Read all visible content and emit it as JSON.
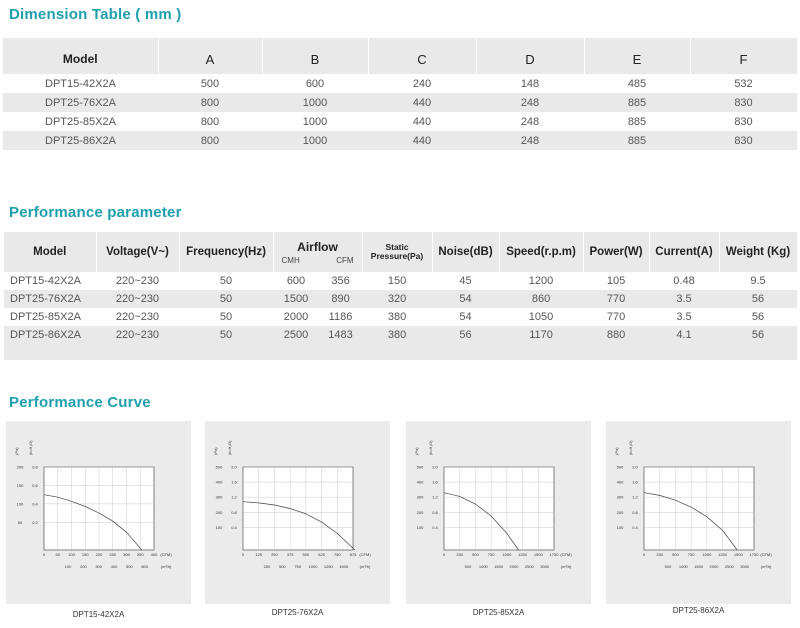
{
  "dimension": {
    "title": "Dimension Table ( mm )",
    "headers": [
      "Model",
      "A",
      "B",
      "C",
      "D",
      "E",
      "F"
    ],
    "rows": [
      [
        "DPT15-42X2A",
        "500",
        "600",
        "240",
        "148",
        "485",
        "532"
      ],
      [
        "DPT25-76X2A",
        "800",
        "1000",
        "440",
        "248",
        "885",
        "830"
      ],
      [
        "DPT25-85X2A",
        "800",
        "1000",
        "440",
        "248",
        "885",
        "830"
      ],
      [
        "DPT25-86X2A",
        "800",
        "1000",
        "440",
        "248",
        "885",
        "830"
      ]
    ]
  },
  "performance": {
    "title": "Performance parameter",
    "headers": {
      "model": "Model",
      "voltage": "Voltage(V~)",
      "frequency": "Frequency(Hz)",
      "airflow": "Airflow",
      "cmh": "CMH",
      "cfm": "CFM",
      "static_top": "Static",
      "static_bottom": "Pressure(Pa)",
      "noise": "Noise(dB)",
      "speed": "Speed(r.p.m)",
      "power": "Power(W)",
      "current": "Current(A)",
      "weight": "Weight (Kg)"
    },
    "rows": [
      [
        "DPT15-42X2A",
        "220~230",
        "50",
        "600",
        "356",
        "150",
        "45",
        "1200",
        "105",
        "0.48",
        "9.5"
      ],
      [
        "DPT25-76X2A",
        "220~230",
        "50",
        "1500",
        "890",
        "320",
        "54",
        "860",
        "770",
        "3.5",
        "56"
      ],
      [
        "DPT25-85X2A",
        "220~230",
        "50",
        "2000",
        "1186",
        "380",
        "54",
        "1050",
        "770",
        "3.5",
        "56"
      ],
      [
        "DPT25-86X2A",
        "220~230",
        "50",
        "2500",
        "1483",
        "380",
        "56",
        "1170",
        "880",
        "4.1",
        "56"
      ]
    ]
  },
  "curves": {
    "title": "Performance Curve",
    "unit_pa": "(Pa)",
    "unit_inh2o": "(in.H₂O)",
    "unit_cfm": "(CFM)",
    "unit_m3h": "(m³/h)"
  },
  "chart_data": [
    {
      "type": "line",
      "title": "DPT15-42X2A",
      "y_pa_ticks": [
        "200",
        "150",
        "100",
        "50"
      ],
      "y_in_ticks": [
        "0.8",
        "0.6",
        "0.4",
        "0.2"
      ],
      "x_cfm_ticks": [
        "0",
        "50",
        "100",
        "150",
        "200",
        "250",
        "300",
        "350",
        "400"
      ],
      "x_m3h_ticks": [
        "100",
        "200",
        "300",
        "400",
        "500",
        "600"
      ],
      "xlim": [
        0,
        400
      ],
      "ylim": [
        0,
        200
      ],
      "series": [
        {
          "x": [
            0,
            50,
            100,
            150,
            200,
            250,
            300,
            356
          ],
          "y": [
            150,
            143,
            132,
            118,
            100,
            78,
            48,
            0
          ]
        }
      ]
    },
    {
      "type": "line",
      "title": "DPT25-76X2A",
      "y_pa_ticks": [
        "500",
        "400",
        "300",
        "200",
        "100"
      ],
      "y_in_ticks": [
        "2.0",
        "1.6",
        "1.2",
        "0.8",
        "0.4"
      ],
      "x_cfm_ticks": [
        "0",
        "125",
        "250",
        "375",
        "500",
        "625",
        "750",
        "875"
      ],
      "x_m3h_ticks": [
        "250",
        "500",
        "750",
        "1000",
        "1250",
        "1500"
      ],
      "xlim": [
        0,
        875
      ],
      "ylim": [
        0,
        500
      ],
      "series": [
        {
          "x": [
            0,
            125,
            250,
            375,
            500,
            625,
            750,
            890
          ],
          "y": [
            320,
            312,
            298,
            275,
            240,
            185,
            110,
            0
          ]
        }
      ]
    },
    {
      "type": "line",
      "title": "DPT25-85X2A",
      "y_pa_ticks": [
        "500",
        "400",
        "300",
        "200",
        "100"
      ],
      "y_in_ticks": [
        "2.0",
        "1.6",
        "1.2",
        "0.8",
        "0.4"
      ],
      "x_cfm_ticks": [
        "0",
        "250",
        "500",
        "750",
        "1000",
        "1250",
        "1500",
        "1750"
      ],
      "x_m3h_ticks": [
        "500",
        "1000",
        "1500",
        "2000",
        "2500",
        "3000"
      ],
      "xlim": [
        0,
        1750
      ],
      "ylim": [
        0,
        500
      ],
      "series": [
        {
          "x": [
            0,
            250,
            500,
            750,
            1000,
            1186
          ],
          "y": [
            380,
            355,
            305,
            225,
            110,
            0
          ]
        }
      ]
    },
    {
      "type": "line",
      "title": "DPT25-86X2A",
      "y_pa_ticks": [
        "500",
        "400",
        "300",
        "200",
        "100"
      ],
      "y_in_ticks": [
        "2.0",
        "1.6",
        "1.2",
        "0.8",
        "0.4"
      ],
      "x_cfm_ticks": [
        "0",
        "250",
        "500",
        "750",
        "1000",
        "1250",
        "1500",
        "1750"
      ],
      "x_m3h_ticks": [
        "500",
        "1000",
        "1500",
        "2000",
        "2500",
        "3000"
      ],
      "xlim": [
        0,
        1750
      ],
      "ylim": [
        0,
        500
      ],
      "series": [
        {
          "x": [
            0,
            250,
            500,
            750,
            1000,
            1250,
            1483
          ],
          "y": [
            380,
            362,
            330,
            285,
            220,
            130,
            0
          ]
        }
      ]
    }
  ]
}
